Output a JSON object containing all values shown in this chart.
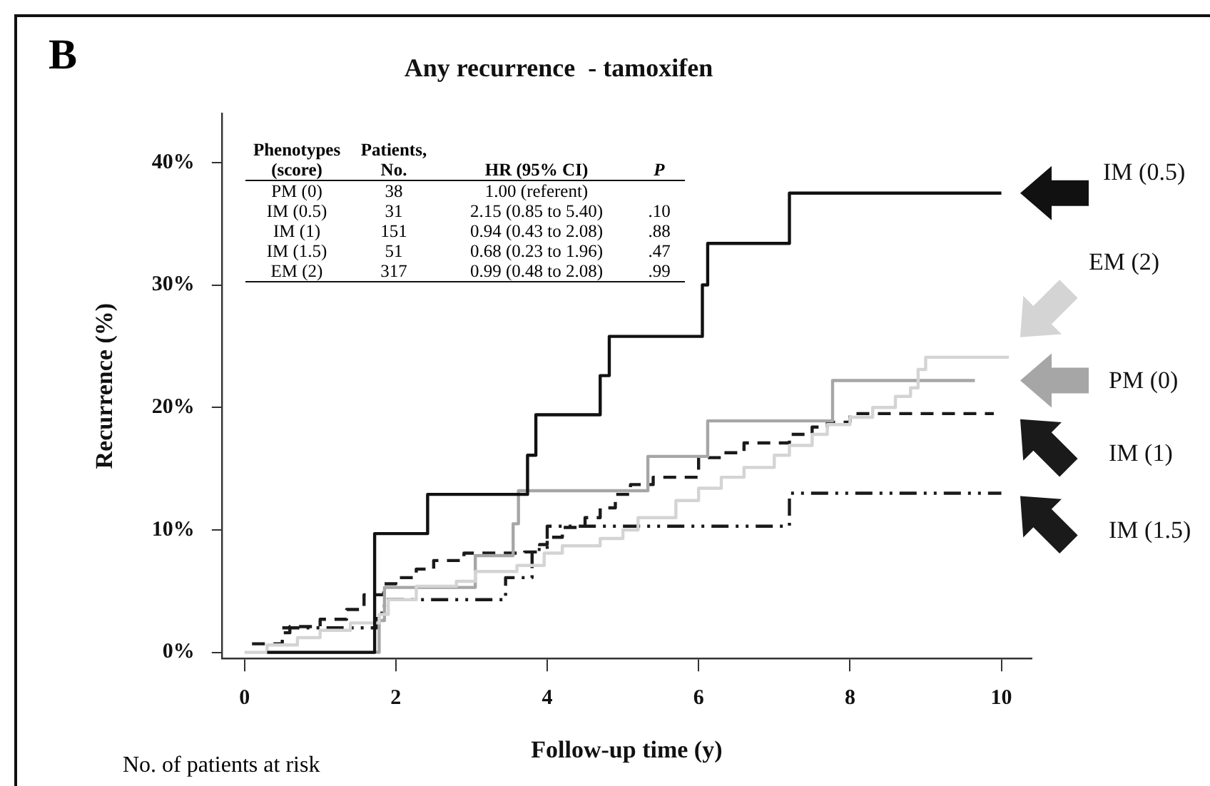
{
  "chart_data": {
    "type": "step",
    "title": "Any recurrence  - tamoxifen",
    "xlabel": "Follow-up time (y)",
    "ylabel": "Recurrence (%)",
    "annotations": [
      "B",
      "No. of patients at risk",
      "Phenotypes (score)\tPatients, No.\tHR (95% CI)\tP",
      "PM (0)\t38\t1.00 (referent)",
      "IM (0.5)\t31\t2.15 (0.85 to 5.40)\t.10",
      "IM (1)\t151\t0.94 (0.43 to 2.08)\t.88",
      "IM (1.5)\t51\t0.68 (0.23 to 1.96)\t.47",
      "EM (2)\t317\t0.99 (0.48 to 2.08)\t.99"
    ],
    "series": [
      {
        "name": "IM (0.5)",
        "color": "#111111",
        "line_style": "solid",
        "x": [
          0.3,
          1.72,
          2.42,
          3.74,
          3.85,
          4.7,
          4.82,
          6.05,
          6.12,
          7.2,
          10.0
        ],
        "values": [
          0,
          9.7,
          12.9,
          16.1,
          19.4,
          22.6,
          25.8,
          30.0,
          33.4,
          37.5,
          37.5
        ]
      },
      {
        "name": "EM (2)",
        "color": "#d4d4d4",
        "line_style": "solid",
        "x": [
          0,
          0.3,
          0.7,
          1.0,
          1.4,
          1.78,
          1.9,
          2.27,
          2.8,
          3.05,
          3.6,
          3.96,
          4.2,
          4.7,
          5.0,
          5.2,
          5.7,
          6.0,
          6.3,
          6.6,
          7.0,
          7.2,
          7.5,
          7.7,
          8.0,
          8.3,
          8.6,
          8.8,
          8.9,
          9.0,
          10.1
        ],
        "values": [
          0,
          0.6,
          1.2,
          1.8,
          2.4,
          3.1,
          4.3,
          5.4,
          5.8,
          6.6,
          7.1,
          8.1,
          8.7,
          9.3,
          10.0,
          11.0,
          12.4,
          13.4,
          14.3,
          15.1,
          16.1,
          16.9,
          17.8,
          18.6,
          19.2,
          20.0,
          20.9,
          21.6,
          23.1,
          24.1,
          24.1
        ]
      },
      {
        "name": "PM (0)",
        "color": "#a6a6a6",
        "line_style": "solid",
        "x": [
          0.3,
          1.78,
          1.85,
          3.05,
          3.55,
          3.62,
          5.33,
          6.12,
          7.77,
          9.65
        ],
        "values": [
          0,
          2.6,
          5.3,
          7.9,
          10.5,
          13.2,
          16.0,
          18.9,
          22.2,
          22.2
        ]
      },
      {
        "name": "IM (1)",
        "color": "#1a1a1a",
        "line_style": "dashed",
        "x": [
          0.1,
          0.5,
          0.6,
          1.0,
          1.35,
          1.58,
          1.84,
          2.0,
          2.27,
          2.5,
          2.9,
          3.7,
          3.9,
          4.0,
          4.2,
          4.5,
          4.7,
          4.9,
          5.1,
          5.4,
          6.0,
          6.3,
          6.6,
          7.2,
          7.5,
          7.7,
          8.0,
          9.9
        ],
        "values": [
          0.7,
          1.6,
          2.1,
          2.7,
          3.5,
          4.7,
          5.6,
          6.1,
          6.8,
          7.5,
          8.1,
          8.2,
          8.8,
          9.4,
          10.2,
          11.0,
          11.8,
          12.9,
          13.7,
          14.3,
          15.9,
          16.3,
          17.1,
          17.8,
          18.4,
          18.8,
          19.5,
          19.5
        ]
      },
      {
        "name": "IM (1.5)",
        "color": "#1a1a1a",
        "line_style": "dashdot",
        "x": [
          0.5,
          1.75,
          1.85,
          3.45,
          3.8,
          4.0,
          7.2,
          10.0
        ],
        "values": [
          2.0,
          3.2,
          4.3,
          6.1,
          8.4,
          10.3,
          13.0,
          13.0
        ]
      }
    ],
    "xlim": [
      -0.3,
      10.4
    ],
    "xticks": [
      0,
      2,
      4,
      6,
      8,
      10
    ],
    "ylim": [
      -0.5,
      44
    ],
    "yticks": [
      {
        "value": 0,
        "label": "0%"
      },
      {
        "value": 10,
        "label": "10%"
      },
      {
        "value": 20,
        "label": "20%"
      },
      {
        "value": 30,
        "label": "30%"
      },
      {
        "value": 40,
        "label": "40%"
      }
    ],
    "grid": false,
    "legend": "right",
    "marker": "none"
  }
}
